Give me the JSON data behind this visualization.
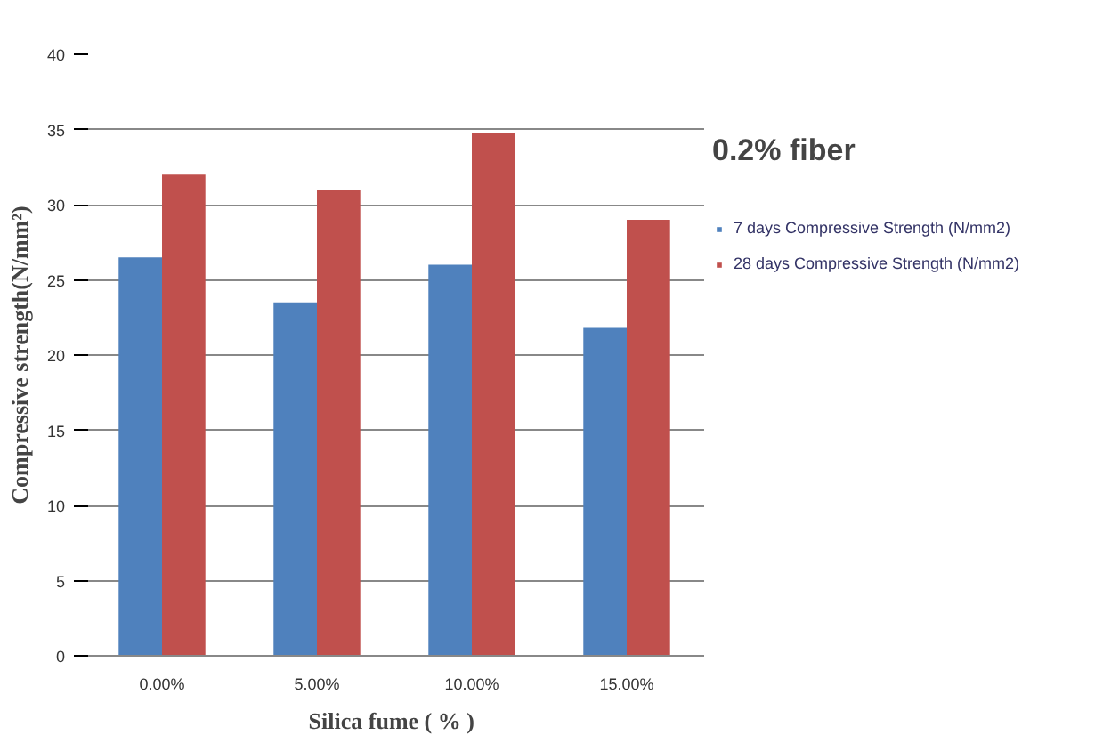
{
  "chart_data": {
    "type": "bar",
    "title": "0.2% fiber",
    "xlabel": "Silica fume  ( % )",
    "ylabel": "Compressive strength(N/mm²)",
    "categories": [
      "0.00%",
      "5.00%",
      "10.00%",
      "15.00%"
    ],
    "series": [
      {
        "name": "7 days Compressive Strength (N/mm2)",
        "color": "#4f81bd",
        "values": [
          26.5,
          23.5,
          26,
          21.8
        ]
      },
      {
        "name": "28 days Compressive Strength (N/mm2)",
        "color": "#c0504d",
        "values": [
          32,
          31,
          34.8,
          29
        ]
      }
    ],
    "ylim": [
      0,
      40
    ],
    "yticks": [
      0,
      5,
      10,
      15,
      20,
      25,
      30,
      35,
      40
    ],
    "grid": "y",
    "legend": "right"
  }
}
